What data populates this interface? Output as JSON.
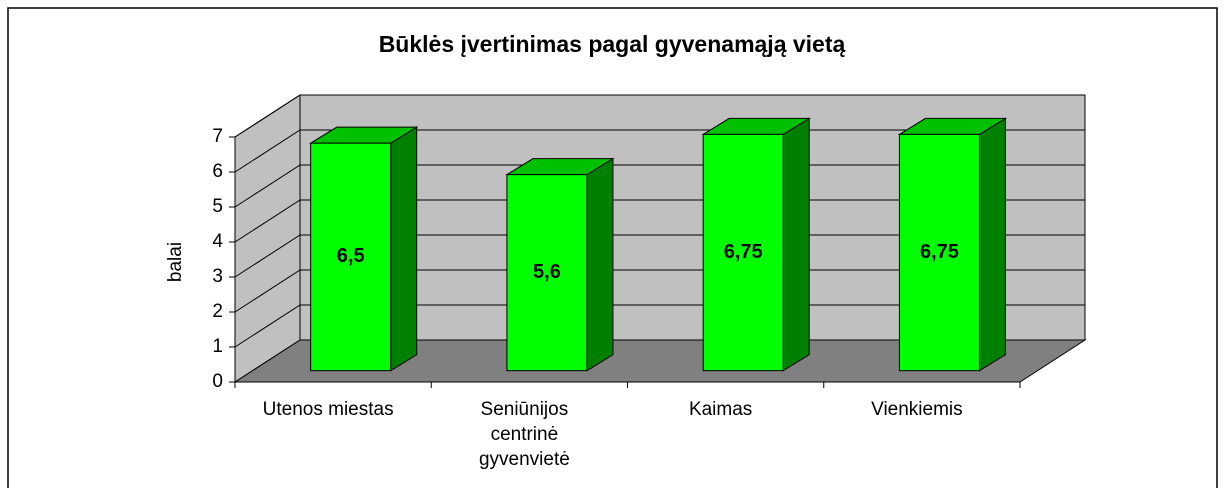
{
  "chart_data": {
    "type": "bar3d",
    "title": "Būklės įvertinimas pagal gyvenamąją vietą",
    "y_label": "balai",
    "categories": [
      "Utenos miestas",
      "Seniūnijos\ncentrinė\ngyvenvietė",
      "Kaimas",
      "Vienkiemis"
    ],
    "values": [
      6.5,
      5.6,
      6.75,
      6.75
    ],
    "value_labels": [
      "6,5",
      "5,6",
      "6,75",
      "6,75"
    ],
    "color": "#00ff00",
    "ylim": [
      0,
      7
    ],
    "yticks": [
      0,
      1,
      2,
      3,
      4,
      5,
      6,
      7
    ],
    "grid": true
  }
}
